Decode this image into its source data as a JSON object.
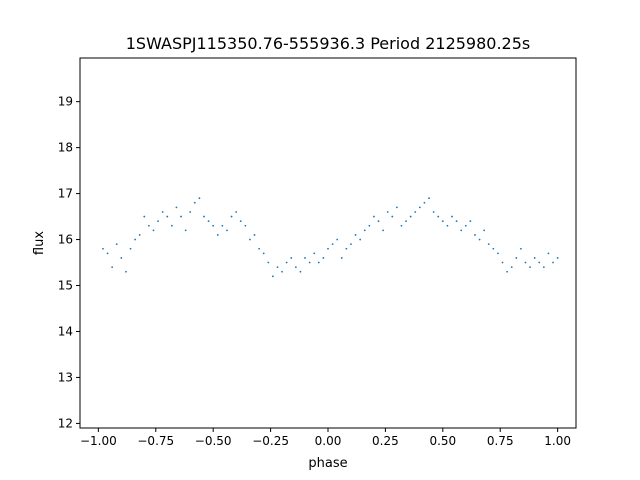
{
  "chart_data": {
    "type": "scatter",
    "title": "1SWASPJ115350.76-555936.3 Period 2125980.25s",
    "xlabel": "phase",
    "ylabel": "flux",
    "xlim": [
      -1.08,
      1.08
    ],
    "ylim": [
      11.9,
      19.95
    ],
    "xticks": [
      -1.0,
      -0.75,
      -0.5,
      -0.25,
      0.0,
      0.25,
      0.5,
      0.75,
      1.0
    ],
    "xtick_labels": [
      "−1.00",
      "−0.75",
      "−0.50",
      "−0.25",
      "0.00",
      "0.25",
      "0.50",
      "0.75",
      "1.00"
    ],
    "yticks": [
      12,
      13,
      14,
      15,
      16,
      17,
      18,
      19
    ],
    "ytick_labels": [
      "12",
      "13",
      "14",
      "15",
      "16",
      "17",
      "18",
      "19"
    ],
    "grid": false,
    "marker_color": "#1f77b4",
    "series": [
      {
        "x": [
          -0.98,
          -0.96,
          -0.94,
          -0.92,
          -0.9,
          -0.88,
          -0.86,
          -0.84,
          -0.82,
          -0.8,
          -0.78,
          -0.76,
          -0.74,
          -0.72,
          -0.7,
          -0.68,
          -0.66,
          -0.64,
          -0.62,
          -0.6,
          -0.58,
          -0.56,
          -0.54,
          -0.52,
          -0.5,
          -0.48,
          -0.46,
          -0.44,
          -0.42,
          -0.4,
          -0.38,
          -0.36,
          -0.34,
          -0.32,
          -0.3,
          -0.28,
          -0.26,
          -0.24,
          -0.22,
          -0.2,
          -0.18,
          -0.16,
          -0.14,
          -0.12,
          -0.1,
          -0.08,
          -0.06,
          -0.04,
          -0.02,
          0.0,
          0.02,
          0.04,
          0.06,
          0.08,
          0.1,
          0.12,
          0.14,
          0.16,
          0.18,
          0.2,
          0.22,
          0.24,
          0.26,
          0.28,
          0.3,
          0.32,
          0.34,
          0.36,
          0.38,
          0.4,
          0.42,
          0.44,
          0.46,
          0.48,
          0.5,
          0.52,
          0.54,
          0.56,
          0.58,
          0.6,
          0.62,
          0.64,
          0.66,
          0.68,
          0.7,
          0.72,
          0.74,
          0.76,
          0.78,
          0.8,
          0.82,
          0.84,
          0.86,
          0.88,
          0.9,
          0.92,
          0.94,
          0.96,
          0.98,
          1.0
        ],
        "y": [
          15.8,
          15.7,
          15.4,
          15.9,
          15.6,
          15.3,
          15.8,
          16.0,
          16.1,
          16.5,
          16.3,
          16.2,
          16.4,
          16.6,
          16.5,
          16.3,
          16.7,
          16.5,
          16.2,
          16.6,
          16.8,
          16.9,
          16.5,
          16.4,
          16.3,
          16.1,
          16.3,
          16.2,
          16.5,
          16.6,
          16.4,
          16.3,
          16.0,
          16.1,
          15.8,
          15.7,
          15.5,
          15.2,
          15.4,
          15.3,
          15.5,
          15.6,
          15.4,
          15.3,
          15.6,
          15.5,
          15.7,
          15.5,
          15.6,
          15.8,
          15.9,
          16.0,
          15.6,
          15.8,
          15.9,
          16.1,
          16.0,
          16.2,
          16.3,
          16.5,
          16.4,
          16.2,
          16.6,
          16.5,
          16.7,
          16.3,
          16.4,
          16.5,
          16.6,
          16.7,
          16.8,
          16.9,
          16.6,
          16.5,
          16.4,
          16.3,
          16.5,
          16.4,
          16.2,
          16.3,
          16.4,
          16.1,
          16.0,
          16.2,
          15.9,
          15.8,
          15.7,
          15.5,
          15.3,
          15.4,
          15.6,
          15.8,
          15.5,
          15.4,
          15.6,
          15.5,
          15.4,
          15.7,
          15.5,
          15.6
        ]
      }
    ]
  }
}
